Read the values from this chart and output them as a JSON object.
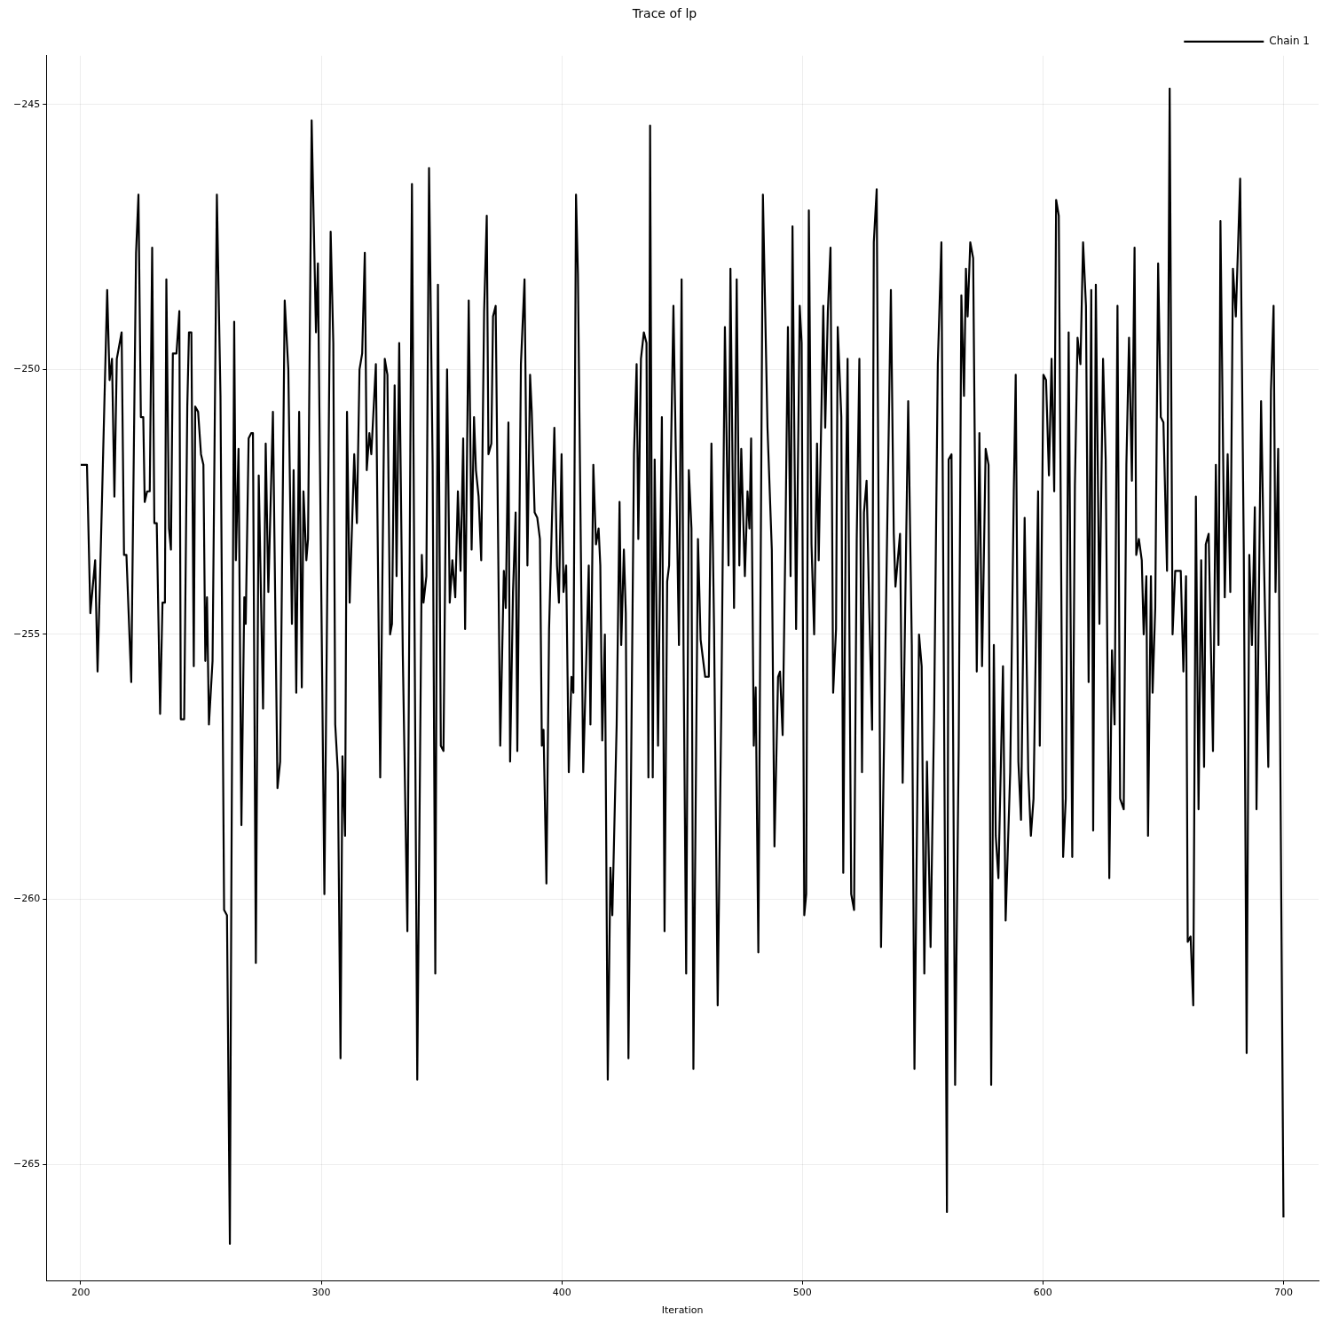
{
  "chart_data": {
    "type": "line",
    "title": "Trace of lp",
    "xlabel": "Iteration",
    "legend": "top right",
    "grid": true,
    "marker": "none",
    "line_style": "solid",
    "xlim": [
      185.7,
      714.6
    ],
    "xticks": [
      200,
      300,
      400,
      500,
      600,
      700
    ],
    "ylim": [
      -267.2,
      -244.08
    ],
    "yticks": [
      {
        "value": -265,
        "label": "−265"
      },
      {
        "value": -260,
        "label": "−260"
      },
      {
        "value": -255,
        "label": "−255"
      },
      {
        "value": -250,
        "label": "−250"
      },
      {
        "value": -245,
        "label": "−245"
      }
    ],
    "series": [
      {
        "name": "Chain 1",
        "color": "#000000",
        "x": [
          200,
          202.6,
          204,
          206,
          207,
          208,
          211,
          212,
          213,
          214,
          215,
          217,
          218,
          219,
          221,
          223,
          224,
          225,
          226,
          226.6,
          227.6,
          228.7,
          229.7,
          230.6,
          231.6,
          233,
          234,
          235,
          235.6,
          236.7,
          237.5,
          238.3,
          239.8,
          241,
          241.6,
          243,
          244.3,
          245,
          246,
          247,
          247.6,
          248.8,
          250,
          251,
          251.8,
          252.5,
          253.3,
          254.8,
          256.6,
          258.1,
          259.6,
          260.8,
          262,
          262.6,
          263.8,
          264.5,
          265.6,
          266.8,
          268,
          268.6,
          269.8,
          270.9,
          271.6,
          272.8,
          274,
          275.8,
          276.9,
          278,
          279.9,
          281.8,
          282.9,
          284.8,
          286.3,
          287.8,
          288.5,
          289.6,
          290.8,
          291.9,
          292.6,
          293.8,
          294.5,
          296,
          297.8,
          298.6,
          301.3,
          303.9,
          305,
          305.8,
          306.9,
          308,
          308.8,
          309.9,
          310.7,
          311.8,
          313.7,
          314.8,
          315.9,
          317,
          318.1,
          318.9,
          320,
          320.8,
          322.7,
          324.5,
          326.4,
          327.5,
          328.6,
          329.4,
          330.5,
          331.3,
          332.4,
          333.9,
          335.8,
          337.7,
          339.9,
          341.8,
          342.5,
          343.7,
          344.8,
          346.3,
          347.4,
          348.5,
          349.7,
          350.8,
          352.3,
          353.4,
          354.5,
          355.7,
          356.8,
          357.9,
          359,
          359.8,
          361.3,
          362.5,
          363.5,
          364.3,
          365.4,
          366.5,
          367.7,
          368.8,
          369.5,
          370.7,
          371.4,
          372.5,
          374.4,
          375.9,
          376.7,
          377.8,
          378.5,
          379.7,
          380.8,
          381.5,
          383,
          384.5,
          385.7,
          386.8,
          387.5,
          388.7,
          389.8,
          390.9,
          391.7,
          392.4,
          393.6,
          394.7,
          396.9,
          398,
          398.8,
          399.9,
          400.7,
          401.8,
          402.9,
          404,
          404.8,
          405.9,
          406.7,
          408.9,
          411.2,
          411.9,
          413.1,
          414.2,
          415.3,
          416,
          416.8,
          417.9,
          419.1,
          420.2,
          421,
          422.8,
          424,
          424.7,
          425.8,
          426.6,
          427.7,
          430,
          431.1,
          431.8,
          432.9,
          434.1,
          435.2,
          436,
          436.7,
          437.8,
          438.6,
          440,
          441.6,
          442.7,
          443.8,
          444.6,
          446.4,
          448.7,
          449.8,
          450.6,
          451.7,
          452.8,
          453.9,
          454.7,
          456.6,
          457.7,
          459.6,
          461.1,
          462.2,
          463.3,
          464.8,
          466.3,
          467.8,
          469.3,
          470.1,
          471.6,
          472.7,
          473.8,
          474.6,
          476.1,
          477.2,
          478,
          478.7,
          479.8,
          480.6,
          481.7,
          483.6,
          485.5,
          487.3,
          488.4,
          489.9,
          490.7,
          491.8,
          492.9,
          494,
          495.1,
          495.9,
          497.4,
          498.9,
          499.7,
          500.8,
          501.6,
          502.7,
          503.8,
          504.9,
          506.1,
          506.8,
          508.7,
          509.5,
          510.6,
          511.7,
          512.8,
          514,
          514.7,
          516.2,
          517,
          518.1,
          518.8,
          520.3,
          521.5,
          522.6,
          523.7,
          524.8,
          525.6,
          526.7,
          527.8,
          529,
          529.7,
          530.9,
          532.7,
          534.6,
          536.8,
          538,
          538.7,
          540.6,
          541.7,
          544,
          545.5,
          546.6,
          548.5,
          549.6,
          550.7,
          551.8,
          553.3,
          554.8,
          556.3,
          557.8,
          560.1,
          560.8,
          562,
          563.5,
          565,
          566.1,
          567.2,
          568,
          568.7,
          569.8,
          571,
          572.5,
          573.6,
          574.7,
          576.2,
          577.4,
          578.5,
          579.6,
          580.4,
          581.5,
          583.4,
          584.5,
          586.4,
          587.9,
          588.7,
          589.8,
          590.9,
          592.4,
          593.9,
          595,
          596.1,
          598,
          598.7,
          600.2,
          601.3,
          602.5,
          603.6,
          604.7,
          605.5,
          606.6,
          608.4,
          609.5,
          610.7,
          612.2,
          613.3,
          614.4,
          615.6,
          616.7,
          617.9,
          619,
          620.1,
          620.9,
          622,
          623.5,
          625,
          626.1,
          627.6,
          628.7,
          629.8,
          631,
          632.1,
          633.6,
          634.7,
          635.8,
          637,
          638.1,
          638.8,
          639.9,
          641.1,
          641.9,
          643,
          643.7,
          644.9,
          645.6,
          646.7,
          647.9,
          649,
          650.1,
          651.6,
          652.7,
          653.9,
          655,
          657.3,
          658.4,
          659.5,
          660.2,
          661.4,
          662.5,
          663.6,
          664.7,
          665.8,
          667,
          667.7,
          668.9,
          670.7,
          671.9,
          673,
          673.8,
          675.6,
          676.8,
          677.9,
          679,
          680.2,
          682,
          683.5,
          684.7,
          685.8,
          686.9,
          688.1,
          688.8,
          690.7,
          691.8,
          693.7,
          694.8,
          695.9,
          696.7,
          697.8,
          700
        ],
        "values": [
          -251.8,
          -251.8,
          -254.6,
          -253.6,
          -255.7,
          -254.0,
          -248.5,
          -250.2,
          -249.8,
          -252.4,
          -249.8,
          -249.3,
          -253.5,
          -253.5,
          -255.9,
          -247.8,
          -246.7,
          -250.9,
          -250.9,
          -252.5,
          -252.3,
          -252.3,
          -247.7,
          -252.9,
          -252.9,
          -256.5,
          -254.4,
          -254.4,
          -248.3,
          -253.0,
          -253.4,
          -249.7,
          -249.7,
          -248.9,
          -256.6,
          -256.6,
          -250.7,
          -249.3,
          -249.3,
          -255.6,
          -250.7,
          -250.8,
          -251.6,
          -251.8,
          -255.5,
          -254.3,
          -256.7,
          -255.5,
          -246.7,
          -250.5,
          -260.2,
          -260.3,
          -266.5,
          -260,
          -249.1,
          -253.6,
          -251.5,
          -258.6,
          -254.3,
          -254.8,
          -251.3,
          -251.2,
          -251.2,
          -261.2,
          -252.0,
          -256.4,
          -251.4,
          -254.2,
          -250.8,
          -257.9,
          -257.4,
          -248.7,
          -250.0,
          -254.8,
          -251.9,
          -256.1,
          -250.8,
          -256.0,
          -252.3,
          -253.6,
          -253.2,
          -245.3,
          -249.3,
          -248.0,
          -259.9,
          -247.4,
          -249.5,
          -256.7,
          -257.6,
          -263.0,
          -257.3,
          -258.8,
          -250.8,
          -254.4,
          -251.6,
          -252.9,
          -250.0,
          -249.7,
          -247.8,
          -251.9,
          -251.2,
          -251.6,
          -249.9,
          -257.7,
          -249.8,
          -250.1,
          -255.0,
          -254.8,
          -250.3,
          -253.9,
          -249.5,
          -255.4,
          -260.6,
          -246.5,
          -263.4,
          -253.5,
          -254.4,
          -253.9,
          -246.2,
          -251.8,
          -261.4,
          -248.4,
          -257.1,
          -257.2,
          -250.0,
          -254.4,
          -253.6,
          -254.3,
          -252.3,
          -253.8,
          -251.3,
          -254.9,
          -248.7,
          -253.4,
          -250.9,
          -251.9,
          -252.4,
          -253.6,
          -248.9,
          -247.1,
          -251.6,
          -251.4,
          -249.0,
          -248.8,
          -257.1,
          -253.8,
          -254.5,
          -251.0,
          -257.4,
          -254.2,
          -252.7,
          -257.2,
          -249.9,
          -248.3,
          -253.7,
          -250.1,
          -250.8,
          -252.7,
          -252.8,
          -253.2,
          -257.1,
          -256.8,
          -259.7,
          -254.9,
          -251.1,
          -253.7,
          -254.4,
          -251.6,
          -254.2,
          -253.7,
          -257.6,
          -255.8,
          -256.1,
          -246.7,
          -248.2,
          -257.6,
          -253.7,
          -256.7,
          -251.8,
          -253.3,
          -253.0,
          -253.7,
          -257.0,
          -255.0,
          -263.4,
          -259.4,
          -260.3,
          -256.7,
          -252.5,
          -255.2,
          -253.4,
          -254.6,
          -263.0,
          -251.6,
          -249.9,
          -253.2,
          -249.8,
          -249.3,
          -249.5,
          -257.7,
          -245.4,
          -257.7,
          -251.7,
          -257.1,
          -250.9,
          -260.6,
          -254.0,
          -253.7,
          -248.8,
          -255.2,
          -248.3,
          -255.3,
          -261.4,
          -251.9,
          -253.0,
          -263.2,
          -253.2,
          -255.1,
          -255.8,
          -255.8,
          -251.4,
          -254.9,
          -262.0,
          -256.4,
          -249.2,
          -253.7,
          -248.1,
          -254.5,
          -248.3,
          -253.7,
          -251.5,
          -253.9,
          -252.3,
          -253.0,
          -251.3,
          -257.1,
          -256.0,
          -261.0,
          -246.7,
          -251.1,
          -253.4,
          -259.0,
          -255.8,
          -255.7,
          -256.9,
          -253.4,
          -249.2,
          -253.9,
          -247.3,
          -254.9,
          -248.8,
          -249.5,
          -260.3,
          -259.9,
          -247.0,
          -253.3,
          -255.0,
          -251.4,
          -253.6,
          -248.8,
          -251.1,
          -248.9,
          -247.7,
          -256.1,
          -254.9,
          -249.2,
          -250.9,
          -259.5,
          -252.4,
          -249.8,
          -259.9,
          -260.2,
          -253.2,
          -249.8,
          -257.6,
          -252.7,
          -252.1,
          -254.5,
          -256.8,
          -247.6,
          -246.6,
          -260.9,
          -255.0,
          -248.5,
          -253.1,
          -254.1,
          -253.1,
          -257.8,
          -250.6,
          -255.2,
          -263.2,
          -255.0,
          -255.6,
          -261.4,
          -257.4,
          -260.9,
          -256.4,
          -249.9,
          -247.6,
          -265.9,
          -251.7,
          -251.6,
          -263.5,
          -257.1,
          -248.6,
          -250.5,
          -248.1,
          -249.0,
          -247.6,
          -247.9,
          -255.7,
          -251.2,
          -255.6,
          -251.5,
          -251.8,
          -263.5,
          -255.2,
          -258.8,
          -259.6,
          -255.6,
          -260.4,
          -257.6,
          -252.3,
          -250.1,
          -257.4,
          -258.5,
          -252.8,
          -257.6,
          -258.8,
          -258.1,
          -252.3,
          -257.1,
          -250.1,
          -250.2,
          -252.0,
          -249.8,
          -252.3,
          -246.8,
          -247.1,
          -259.2,
          -258.1,
          -249.3,
          -259.2,
          -252.2,
          -249.4,
          -249.9,
          -247.6,
          -248.8,
          -255.9,
          -248.5,
          -258.7,
          -248.4,
          -254.8,
          -249.8,
          -251.7,
          -259.6,
          -255.3,
          -256.7,
          -248.8,
          -258.1,
          -258.3,
          -251.8,
          -249.4,
          -252.1,
          -247.7,
          -253.5,
          -253.2,
          -253.6,
          -255.0,
          -253.9,
          -258.8,
          -253.9,
          -256.1,
          -254.5,
          -248.0,
          -250.9,
          -251.0,
          -253.8,
          -244.7,
          -255.0,
          -253.8,
          -253.8,
          -255.7,
          -253.9,
          -260.8,
          -260.7,
          -262.0,
          -252.4,
          -258.3,
          -253.6,
          -257.5,
          -253.3,
          -253.1,
          -257.2,
          -251.8,
          -255.2,
          -247.2,
          -254.3,
          -251.6,
          -254.2,
          -248.1,
          -249.0,
          -246.4,
          -253.4,
          -262.9,
          -253.5,
          -255.2,
          -252.6,
          -258.3,
          -250.6,
          -253.4,
          -257.5,
          -250.4,
          -248.8,
          -254.2,
          -251.5,
          -266.0
        ]
      }
    ]
  }
}
